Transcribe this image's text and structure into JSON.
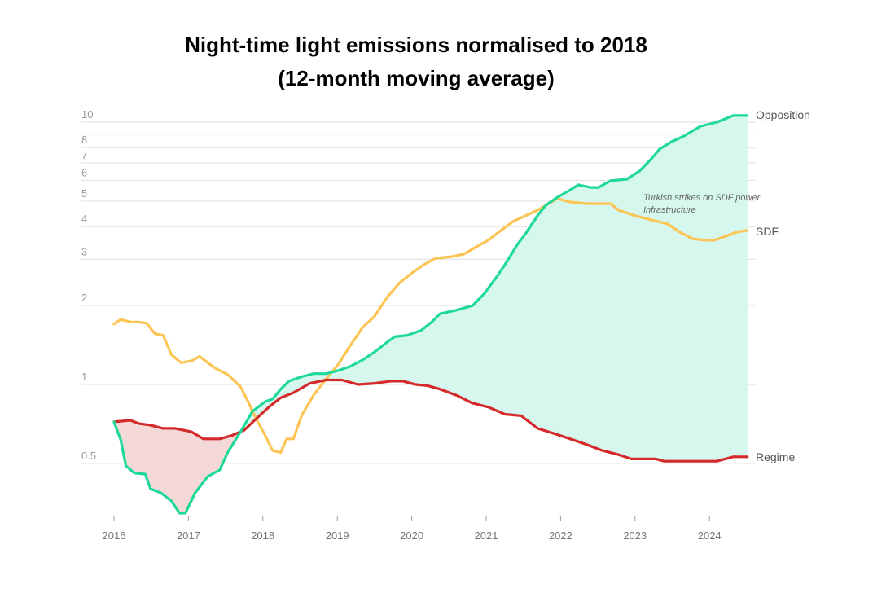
{
  "chart_data": {
    "type": "line",
    "title_lines": [
      "Night-time light emissions normalised to 2018",
      "(12-month moving average)"
    ],
    "xlabel": "",
    "ylabel": "",
    "yscale": "log",
    "ylim": [
      0.32,
      10.8
    ],
    "xlim": [
      2016,
      2024.6
    ],
    "grid": true,
    "ygrid_values": [
      0.5,
      1,
      2,
      3,
      4,
      5,
      6,
      7,
      8,
      9,
      10
    ],
    "ytick_labels": [
      {
        "v": 10,
        "t": "10"
      },
      {
        "v": 8,
        "t": "8"
      },
      {
        "v": 7,
        "t": "7"
      },
      {
        "v": 6,
        "t": "6"
      },
      {
        "v": 5,
        "t": "5"
      },
      {
        "v": 4,
        "t": "4"
      },
      {
        "v": 3,
        "t": "3"
      },
      {
        "v": 2,
        "t": "2"
      },
      {
        "v": 1,
        "t": "1"
      },
      {
        "v": 0.5,
        "t": "0.5"
      }
    ],
    "xticks": [
      {
        "v": 2016,
        "t": "2016"
      },
      {
        "v": 2017,
        "t": "2017"
      },
      {
        "v": 2018,
        "t": "2018"
      },
      {
        "v": 2019,
        "t": "2019"
      },
      {
        "v": 2020,
        "t": "2020"
      },
      {
        "v": 2021,
        "t": "2021"
      },
      {
        "v": 2022,
        "t": "2022"
      },
      {
        "v": 2023,
        "t": "2023"
      },
      {
        "v": 2024,
        "t": "2024"
      }
    ],
    "series": [
      {
        "name": "Opposition",
        "color": "#1ed99a",
        "x": [
          2016.0,
          2016.09,
          2016.16,
          2016.27,
          2016.42,
          2016.49,
          2016.63,
          2016.77,
          2016.88,
          2016.96,
          2017.09,
          2017.26,
          2017.42,
          2017.53,
          2017.7,
          2017.86,
          2018.03,
          2018.13,
          2018.24,
          2018.35,
          2018.52,
          2018.68,
          2018.85,
          2019.01,
          2019.17,
          2019.34,
          2019.5,
          2019.67,
          2019.77,
          2019.94,
          2020.13,
          2020.27,
          2020.38,
          2020.6,
          2020.82,
          2020.98,
          2021.14,
          2021.25,
          2021.42,
          2021.53,
          2021.69,
          2021.8,
          2021.96,
          2022.13,
          2022.24,
          2022.4,
          2022.51,
          2022.67,
          2022.89,
          2023.06,
          2023.22,
          2023.33,
          2023.49,
          2023.66,
          2023.88,
          2024.1,
          2024.32,
          2024.51
        ],
        "y": [
          0.72,
          0.615,
          0.49,
          0.46,
          0.455,
          0.4,
          0.386,
          0.36,
          0.323,
          0.323,
          0.386,
          0.446,
          0.472,
          0.552,
          0.66,
          0.79,
          0.86,
          0.88,
          0.96,
          1.03,
          1.07,
          1.1,
          1.1,
          1.13,
          1.17,
          1.24,
          1.33,
          1.45,
          1.52,
          1.54,
          1.61,
          1.73,
          1.86,
          1.92,
          2.0,
          2.23,
          2.57,
          2.86,
          3.42,
          3.76,
          4.4,
          4.82,
          5.18,
          5.52,
          5.77,
          5.64,
          5.64,
          5.98,
          6.06,
          6.51,
          7.25,
          7.9,
          8.42,
          8.86,
          9.65,
          10.0,
          10.6,
          10.6
        ]
      },
      {
        "name": "SDF",
        "color": "#fcc453",
        "x": [
          2016.0,
          2016.09,
          2016.22,
          2016.33,
          2016.44,
          2016.55,
          2016.66,
          2016.77,
          2016.9,
          2017.04,
          2017.15,
          2017.26,
          2017.37,
          2017.53,
          2017.7,
          2017.81,
          2017.91,
          2018.03,
          2018.13,
          2018.24,
          2018.32,
          2018.41,
          2018.52,
          2018.68,
          2018.85,
          2019.01,
          2019.17,
          2019.34,
          2019.5,
          2019.67,
          2019.83,
          2020.0,
          2020.16,
          2020.32,
          2020.54,
          2020.7,
          2020.87,
          2021.03,
          2021.2,
          2021.36,
          2021.53,
          2021.69,
          2021.8,
          2021.96,
          2022.13,
          2022.35,
          2022.56,
          2022.67,
          2022.78,
          2023.0,
          2023.22,
          2023.44,
          2023.6,
          2023.77,
          2023.93,
          2024.07,
          2024.21,
          2024.37,
          2024.51
        ],
        "y": [
          1.7,
          1.77,
          1.73,
          1.73,
          1.71,
          1.56,
          1.54,
          1.3,
          1.21,
          1.23,
          1.28,
          1.21,
          1.15,
          1.09,
          0.98,
          0.85,
          0.74,
          0.64,
          0.56,
          0.55,
          0.62,
          0.62,
          0.76,
          0.91,
          1.05,
          1.19,
          1.4,
          1.65,
          1.82,
          2.15,
          2.43,
          2.66,
          2.86,
          3.03,
          3.07,
          3.14,
          3.35,
          3.55,
          3.87,
          4.18,
          4.4,
          4.62,
          4.82,
          5.11,
          4.96,
          4.89,
          4.89,
          4.89,
          4.62,
          4.4,
          4.24,
          4.09,
          3.81,
          3.6,
          3.55,
          3.55,
          3.67,
          3.81,
          3.87
        ]
      },
      {
        "name": "Regime",
        "color": "#d42a2a",
        "x": [
          2016.0,
          2016.22,
          2016.33,
          2016.49,
          2016.66,
          2016.82,
          2017.04,
          2017.2,
          2017.42,
          2017.59,
          2017.75,
          2017.91,
          2018.08,
          2018.24,
          2018.41,
          2018.63,
          2018.85,
          2019.06,
          2019.28,
          2019.5,
          2019.72,
          2019.88,
          2020.05,
          2020.21,
          2020.38,
          2020.6,
          2020.81,
          2021.03,
          2021.25,
          2021.47,
          2021.69,
          2021.91,
          2022.13,
          2022.35,
          2022.56,
          2022.78,
          2022.95,
          2023.11,
          2023.28,
          2023.39,
          2023.55,
          2023.71,
          2023.88,
          2024.1,
          2024.32,
          2024.51
        ],
        "y": [
          0.72,
          0.73,
          0.71,
          0.7,
          0.68,
          0.68,
          0.66,
          0.62,
          0.62,
          0.64,
          0.67,
          0.74,
          0.82,
          0.89,
          0.93,
          1.01,
          1.04,
          1.04,
          1.0,
          1.01,
          1.03,
          1.03,
          1.0,
          0.99,
          0.96,
          0.91,
          0.85,
          0.82,
          0.77,
          0.76,
          0.68,
          0.65,
          0.62,
          0.59,
          0.56,
          0.54,
          0.52,
          0.52,
          0.52,
          0.51,
          0.51,
          0.51,
          0.51,
          0.51,
          0.53,
          0.53
        ]
      }
    ],
    "fills": [
      {
        "between": [
          "Opposition",
          "Regime"
        ],
        "where": "Opposition above Regime",
        "color": "#d6f7ee"
      },
      {
        "between": [
          "Regime",
          "Opposition"
        ],
        "where": "Regime above Opposition",
        "color": "#f5d8d8"
      }
    ],
    "series_labels": {
      "opposition": "Opposition",
      "sdf": "SDF",
      "regime": "Regime"
    },
    "annotation": {
      "lines": [
        "Turkish strikes on SDF power",
        "Infrastructure"
      ],
      "x": 2022.3,
      "y": 5.0
    }
  }
}
